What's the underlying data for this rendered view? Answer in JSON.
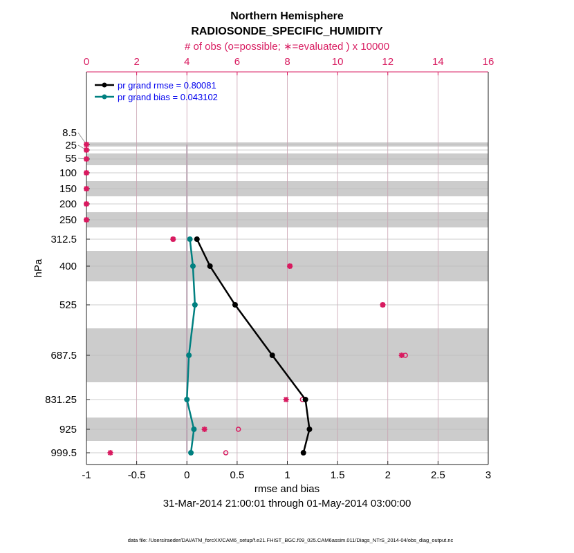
{
  "chart_data": {
    "type": "line",
    "title": "Northern Hemisphere",
    "subtitle": "RADIOSONDE_SPECIFIC_HUMIDITY",
    "top_xlabel": "# of obs (o=possible; ∗=evaluated ) x 10000",
    "xlabel": "rmse and bias",
    "ylabel": "hPa",
    "date_range": "31-Mar-2014 21:00:01 through 01-May-2014 03:00:00",
    "footnote": "data file: /Users/raeder/DAI/ATM_forcXX/CAM6_setup/f.e21.FHIST_BGC.f09_025.CAM6assim.011/Diags_NTrS_2014-04/obs_diag_output.nc",
    "xlim": [
      -1,
      3
    ],
    "top_xlim": [
      0,
      16
    ],
    "x_ticks": [
      "-1",
      "-0.5",
      "0",
      "0.5",
      "1",
      "1.5",
      "2",
      "2.5",
      "3"
    ],
    "top_x_ticks": [
      "0",
      "2",
      "4",
      "6",
      "8",
      "10",
      "12",
      "14",
      "16"
    ],
    "levels": [
      "8.5",
      "25",
      "55",
      "100",
      "150",
      "200",
      "250",
      "312.5",
      "400",
      "525",
      "687.5",
      "831.25",
      "925",
      "999.5"
    ],
    "legend": [
      {
        "label": "pr grand rmse = 0.80081",
        "color": "#000000"
      },
      {
        "label": "pr grand bias = 0.043102",
        "color": "#008080"
      }
    ],
    "legend_position": "top-left",
    "series": [
      {
        "name": "rmse",
        "color": "#000000",
        "levels": [
          "312.5",
          "400",
          "525",
          "687.5",
          "831.25",
          "925",
          "999.5"
        ],
        "values": [
          0.1,
          0.23,
          0.48,
          0.85,
          1.18,
          1.22,
          1.16
        ]
      },
      {
        "name": "bias",
        "color": "#008080",
        "levels": [
          "312.5",
          "400",
          "525",
          "687.5",
          "831.25",
          "925",
          "999.5"
        ],
        "values": [
          0.03,
          0.06,
          0.08,
          0.02,
          0.0,
          0.07,
          0.04
        ]
      }
    ],
    "obs_possible": [
      0,
      0,
      0,
      0,
      0,
      0,
      0,
      3.45,
      8.1,
      11.8,
      12.7,
      8.6,
      6.05,
      5.55
    ],
    "obs_evaluated": [
      0,
      0,
      0,
      0,
      0,
      0,
      0,
      3.45,
      8.1,
      11.8,
      12.55,
      7.95,
      4.7,
      0.95
    ],
    "obs_color": "#d81b60"
  }
}
